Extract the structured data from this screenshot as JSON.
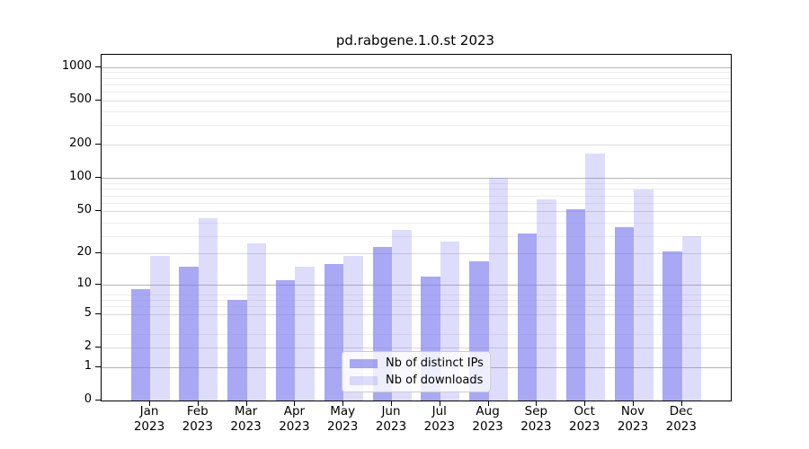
{
  "window": {
    "title": "pd.rabgene.1.0.st 2023"
  },
  "chart_data": {
    "type": "bar",
    "title": "pd.rabgene.1.0.st 2023",
    "xlabel": "",
    "ylabel": "",
    "categories": [
      "Jan",
      "Feb",
      "Mar",
      "Apr",
      "May",
      "Jun",
      "Jul",
      "Aug",
      "Sep",
      "Oct",
      "Nov",
      "Dec"
    ],
    "category_year": "2023",
    "series": [
      {
        "name": "Nb of distinct IPs",
        "color": "#7979ee",
        "alpha": 0.65,
        "values": [
          9,
          15,
          7,
          11,
          16,
          23,
          12,
          17,
          31,
          52,
          35,
          21
        ]
      },
      {
        "name": "Nb of downloads",
        "color": "#7979ee",
        "alpha": 0.25,
        "values": [
          19,
          43,
          25,
          15,
          19,
          33,
          26,
          100,
          63,
          165,
          78,
          29
        ]
      }
    ],
    "y_scale": "log10(value+1)",
    "y_ticks": [
      0,
      1,
      2,
      5,
      10,
      20,
      50,
      100,
      200,
      500,
      1000
    ],
    "ylim": [
      0,
      1300
    ],
    "grid": "on",
    "legend_position": "lower center inside plot",
    "colors": {
      "grid_decade": "#b4b4b4",
      "grid_labeled": "#d9d9d9",
      "grid_minor": "#ededed",
      "axis": "#000000",
      "text": "#000000",
      "background": "#ffffff"
    }
  }
}
